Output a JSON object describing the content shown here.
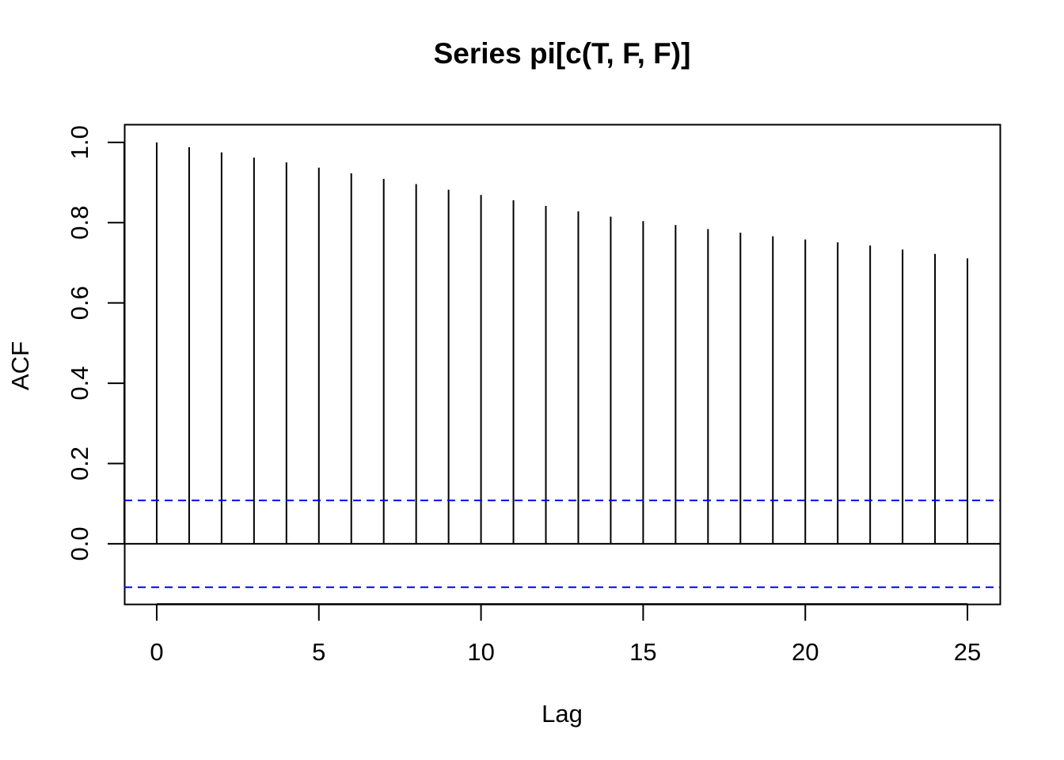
{
  "chart_data": {
    "type": "bar",
    "title": "Series  pi[c(T, F, F)]",
    "xlabel": "Lag",
    "ylabel": "ACF",
    "xlim": [
      -1,
      26
    ],
    "ylim": [
      -0.15,
      1.045
    ],
    "x_ticks": [
      0,
      5,
      10,
      15,
      20,
      25
    ],
    "y_ticks": [
      0.0,
      0.2,
      0.4,
      0.6,
      0.8,
      1.0
    ],
    "x_tick_labels": [
      "0",
      "5",
      "10",
      "15",
      "20",
      "25"
    ],
    "y_tick_labels": [
      "0.0",
      "0.2",
      "0.4",
      "0.6",
      "0.8",
      "1.0"
    ],
    "lags": [
      0,
      1,
      2,
      3,
      4,
      5,
      6,
      7,
      8,
      9,
      10,
      11,
      12,
      13,
      14,
      15,
      16,
      17,
      18,
      19,
      20,
      21,
      22,
      23,
      24,
      25
    ],
    "acf": [
      1.0,
      0.988,
      0.975,
      0.962,
      0.95,
      0.937,
      0.923,
      0.909,
      0.896,
      0.882,
      0.869,
      0.856,
      0.842,
      0.828,
      0.815,
      0.804,
      0.794,
      0.784,
      0.775,
      0.766,
      0.758,
      0.751,
      0.743,
      0.733,
      0.722,
      0.711
    ],
    "confidence_bound": 0.108,
    "zero_line": 0,
    "grid": false,
    "colors": {
      "spikes": "#000000",
      "confidence_lines": "#0000ff",
      "axes": "#000000"
    }
  }
}
